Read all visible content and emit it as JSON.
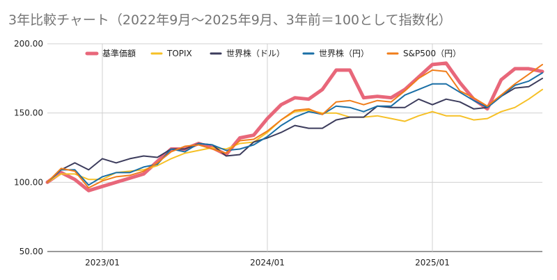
{
  "chart_data": {
    "type": "line",
    "title": "3年比較チャート（2022年9月～2025年9月、3年前＝100として指数化）",
    "xlabel": "",
    "ylabel": "",
    "ylim": [
      50,
      200
    ],
    "yticks": [
      "50.00",
      "100.00",
      "150.00",
      "200.00"
    ],
    "xticks": [
      {
        "label": "2023/01",
        "x": "2023-01"
      },
      {
        "label": "2024/01",
        "x": "2024-01"
      },
      {
        "label": "2025/01",
        "x": "2025-01"
      }
    ],
    "grid": true,
    "legend_position": "top",
    "x": [
      "2022-09",
      "2022-10",
      "2022-11",
      "2022-12",
      "2023-01",
      "2023-02",
      "2023-03",
      "2023-04",
      "2023-05",
      "2023-06",
      "2023-07",
      "2023-08",
      "2023-09",
      "2023-10",
      "2023-11",
      "2023-12",
      "2024-01",
      "2024-02",
      "2024-03",
      "2024-04",
      "2024-05",
      "2024-06",
      "2024-07",
      "2024-08",
      "2024-09",
      "2024-10",
      "2024-11",
      "2024-12",
      "2025-01",
      "2025-02",
      "2025-03",
      "2025-04",
      "2025-05",
      "2025-06",
      "2025-07",
      "2025-08",
      "2025-09"
    ],
    "series": [
      {
        "name": "基準価額",
        "color": "#e8677a",
        "width": 5,
        "values": [
          100,
          107,
          102,
          94,
          97,
          100,
          103,
          106,
          115,
          124,
          124,
          128,
          125,
          120,
          132,
          134,
          146,
          156,
          161,
          160,
          167,
          181,
          181,
          161,
          162,
          161,
          167,
          176,
          185,
          186,
          172,
          160,
          153,
          174,
          182,
          182,
          180
        ]
      },
      {
        "name": "TOPIX",
        "color": "#f6c026",
        "width": 2,
        "values": [
          100,
          106,
          106,
          102,
          102,
          107,
          108,
          109,
          112,
          117,
          121,
          123,
          125,
          124,
          128,
          129,
          136,
          145,
          151,
          152,
          150,
          150,
          147,
          147,
          148,
          146,
          144,
          148,
          151,
          148,
          148,
          145,
          146,
          151,
          154,
          160,
          167
        ]
      },
      {
        "name": "世界株（ドル）",
        "color": "#3c3c5c",
        "width": 2,
        "values": [
          100,
          109,
          114,
          109,
          117,
          114,
          117,
          119,
          118,
          124,
          124,
          128,
          127,
          119,
          120,
          129,
          132,
          136,
          141,
          139,
          139,
          145,
          147,
          147,
          155,
          154,
          154,
          160,
          156,
          160,
          158,
          153,
          154,
          162,
          168,
          169,
          175
        ]
      },
      {
        "name": "世界株（円）",
        "color": "#1a6fa6",
        "width": 2,
        "values": [
          100,
          109,
          109,
          98,
          104,
          107,
          107,
          111,
          113,
          124,
          122,
          128,
          127,
          123,
          124,
          127,
          133,
          141,
          147,
          151,
          149,
          155,
          154,
          151,
          155,
          155,
          163,
          167,
          171,
          171,
          165,
          159,
          154,
          162,
          170,
          173,
          179
        ]
      },
      {
        "name": "S&P500（円）",
        "color": "#f07d1a",
        "width": 2,
        "values": [
          100,
          110,
          108,
          96,
          101,
          104,
          105,
          108,
          114,
          122,
          126,
          127,
          124,
          121,
          130,
          131,
          137,
          145,
          152,
          153,
          149,
          158,
          159,
          156,
          159,
          158,
          166,
          175,
          181,
          180,
          166,
          161,
          155,
          163,
          171,
          178,
          185
        ]
      }
    ]
  }
}
